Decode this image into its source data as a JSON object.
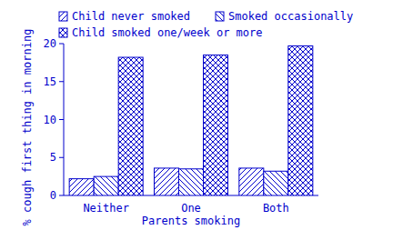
{
  "chart_data": {
    "type": "bar",
    "x_label": "Parents smoking",
    "y_label": "% cough first thing in morning",
    "categories": [
      "Neither",
      "One",
      "Both"
    ],
    "series": [
      {
        "name": "Child never smoked",
        "color": "#0000cc",
        "values": [
          2.2,
          3.6,
          3.6
        ]
      },
      {
        "name": "Smoked occasionally",
        "color": "#0000cc",
        "values": [
          2.5,
          3.5,
          3.2
        ]
      },
      {
        "name": "Child smoked one/week or more",
        "color": "#0000cc",
        "values": [
          18.2,
          18.5,
          19.7
        ]
      }
    ],
    "ylim": [
      0,
      20
    ],
    "yticks": [
      0,
      5,
      10,
      15,
      20
    ],
    "legend": "top",
    "grid": false
  }
}
